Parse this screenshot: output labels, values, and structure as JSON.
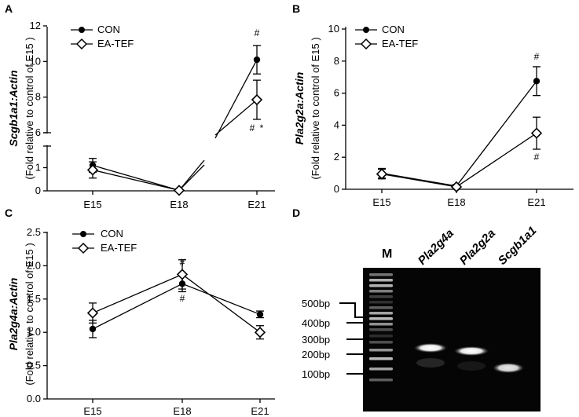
{
  "panels": [
    {
      "letter": "A"
    },
    {
      "letter": "B"
    },
    {
      "letter": "C"
    },
    {
      "letter": "D"
    }
  ],
  "legend": {
    "con": "CON",
    "eatef": "EA-TEF"
  },
  "chart_data": [
    {
      "panel": "A",
      "type": "line",
      "categories": [
        "E15",
        "E18",
        "E21"
      ],
      "ylabel_gene": "Scgb1a1:Actin",
      "ylabel_unit": "(Fold relative to control of E15 )",
      "y_broken": true,
      "y_segments": [
        {
          "range": [
            0,
            1.5
          ],
          "ticks": [
            "0",
            "1"
          ]
        },
        {
          "range": [
            6,
            12
          ],
          "ticks": [
            "6",
            "8",
            "10",
            "12"
          ]
        }
      ],
      "series": [
        {
          "name": "CON",
          "values": [
            1.1,
            0.02,
            10.1
          ],
          "errors": [
            0.3,
            0.02,
            0.8
          ]
        },
        {
          "name": "EA-TEF",
          "values": [
            0.9,
            0.02,
            7.85
          ],
          "errors": [
            0.35,
            0.02,
            1.1
          ]
        }
      ],
      "annotations": [
        "#",
        "#",
        "*"
      ]
    },
    {
      "panel": "B",
      "type": "line",
      "categories": [
        "E15",
        "E18",
        "E21"
      ],
      "ylabel_gene": "Pla2g2a:Actin",
      "ylabel_unit": "(Fold relative to control of E15 )",
      "ylim": [
        0,
        10
      ],
      "yticks": [
        "0",
        "2",
        "4",
        "6",
        "8",
        "10"
      ],
      "series": [
        {
          "name": "CON",
          "values": [
            1.0,
            0.2,
            6.75
          ],
          "errors": [
            0.3,
            0.1,
            0.9
          ]
        },
        {
          "name": "EA-TEF",
          "values": [
            0.95,
            0.15,
            3.5
          ],
          "errors": [
            0.3,
            0.1,
            1.0
          ]
        }
      ],
      "annotations": [
        "#",
        "#"
      ]
    },
    {
      "panel": "C",
      "type": "line",
      "categories": [
        "E15",
        "E18",
        "E21"
      ],
      "ylabel_gene": "Pla2g4a:Actin",
      "ylabel_unit": "(Fold relative to control of E15 )",
      "ylim": [
        0,
        2.5
      ],
      "yticks": [
        "0.0",
        "0.5",
        "1.0",
        "1.5",
        "2.0",
        "2.5"
      ],
      "series": [
        {
          "name": "CON",
          "values": [
            1.05,
            1.73,
            1.27
          ],
          "errors": [
            0.13,
            0.12,
            0.05
          ]
        },
        {
          "name": "EA-TEF",
          "values": [
            1.29,
            1.87,
            1.0
          ],
          "errors": [
            0.15,
            0.22,
            0.1
          ]
        }
      ],
      "annotations": [
        "#",
        "#"
      ]
    }
  ],
  "gel": {
    "marker_label": "M",
    "lane_labels": [
      "Pla2g4a",
      "Pla2g2a",
      "Scgb1a1"
    ],
    "size_labels": [
      "500bp",
      "400bp",
      "300bp",
      "200bp",
      "100bp"
    ]
  }
}
